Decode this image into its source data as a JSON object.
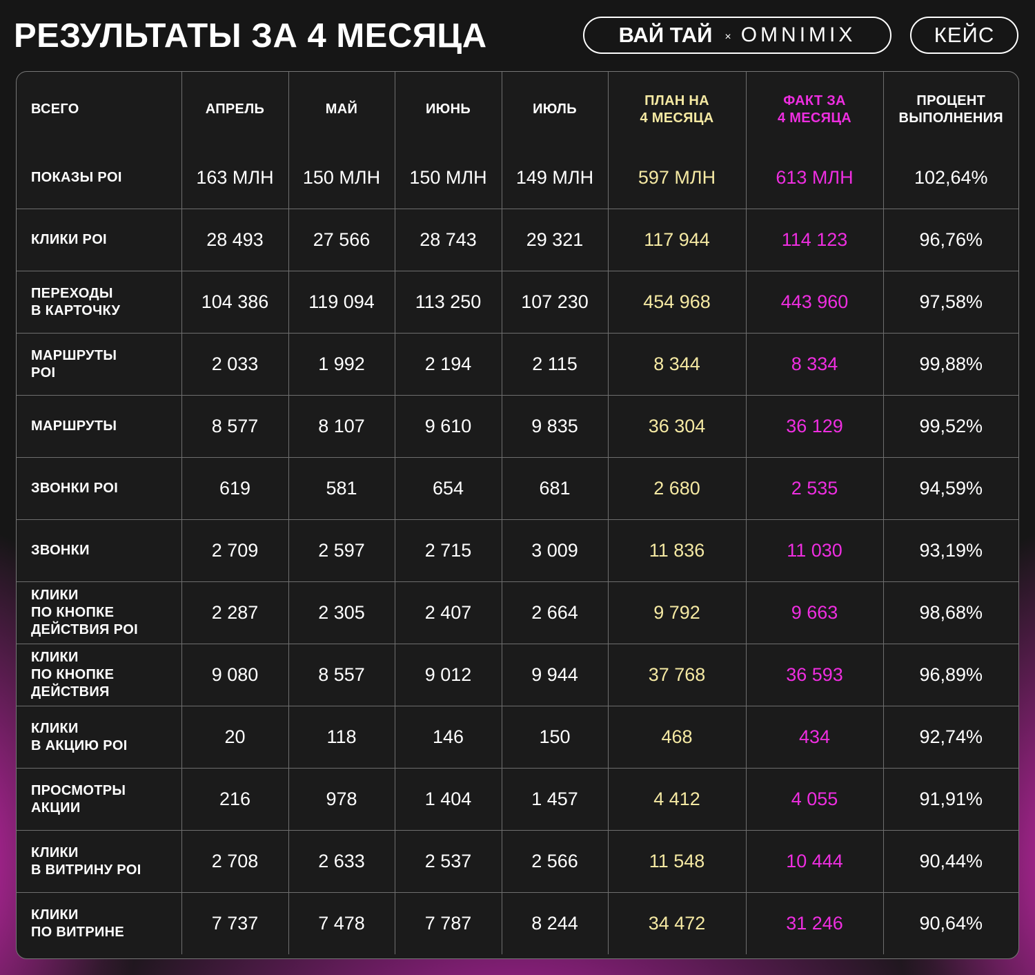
{
  "header": {
    "title": "РЕЗУЛЬТАТЫ ЗА 4 МЕСЯЦА",
    "brand_client": "ВАЙ ТАЙ",
    "brand_separator": "×",
    "brand_agency": "OMNIMIX",
    "case_label": "КЕЙС"
  },
  "colors": {
    "plan": "#f5e9a3",
    "fact": "#ee2ee0",
    "background": "#161616"
  },
  "table": {
    "columns": [
      "ВСЕГО",
      "АПРЕЛЬ",
      "МАЙ",
      "ИЮНЬ",
      "ИЮЛЬ",
      "ПЛАН НА\n4 МЕСЯЦА",
      "ФАКТ ЗА\n4 МЕСЯЦА",
      "ПРОЦЕНТ\nВЫПОЛНЕНИЯ"
    ],
    "rows": [
      [
        "ПОКАЗЫ POI",
        "163 МЛН",
        "150 МЛН",
        "150 МЛН",
        "149 МЛН",
        "597 МЛН",
        "613 МЛН",
        "102,64%"
      ],
      [
        "КЛИКИ POI",
        "28 493",
        "27 566",
        "28 743",
        "29 321",
        "117 944",
        "114 123",
        "96,76%"
      ],
      [
        "ПЕРЕХОДЫ\nВ КАРТОЧКУ",
        "104 386",
        "119 094",
        "113 250",
        "107 230",
        "454 968",
        "443 960",
        "97,58%"
      ],
      [
        "МАРШРУТЫ\nPOI",
        "2 033",
        "1 992",
        "2 194",
        "2 115",
        "8 344",
        "8 334",
        "99,88%"
      ],
      [
        "МАРШРУТЫ",
        "8 577",
        "8 107",
        "9 610",
        "9 835",
        "36 304",
        "36 129",
        "99,52%"
      ],
      [
        "ЗВОНКИ POI",
        "619",
        "581",
        "654",
        "681",
        "2 680",
        "2 535",
        "94,59%"
      ],
      [
        "ЗВОНКИ",
        "2 709",
        "2 597",
        "2 715",
        "3 009",
        "11 836",
        "11 030",
        "93,19%"
      ],
      [
        "КЛИКИ\nПО КНОПКЕ\nДЕЙСТВИЯ POI",
        "2 287",
        "2 305",
        "2 407",
        "2 664",
        "9 792",
        "9 663",
        "98,68%"
      ],
      [
        "КЛИКИ\nПО КНОПКЕ\nДЕЙСТВИЯ",
        "9 080",
        "8 557",
        "9 012",
        "9 944",
        "37 768",
        "36 593",
        "96,89%"
      ],
      [
        "КЛИКИ\nВ АКЦИЮ POI",
        "20",
        "118",
        "146",
        "150",
        "468",
        "434",
        "92,74%"
      ],
      [
        "ПРОСМОТРЫ\nАКЦИИ",
        "216",
        "978",
        "1 404",
        "1 457",
        "4 412",
        "4 055",
        "91,91%"
      ],
      [
        "КЛИКИ\nВ ВИТРИНУ POI",
        "2 708",
        "2 633",
        "2 537",
        "2 566",
        "11 548",
        "10 444",
        "90,44%"
      ],
      [
        "КЛИКИ\nПО ВИТРИНЕ",
        "7 737",
        "7 478",
        "7 787",
        "8 244",
        "34 472",
        "31 246",
        "90,64%"
      ]
    ]
  }
}
